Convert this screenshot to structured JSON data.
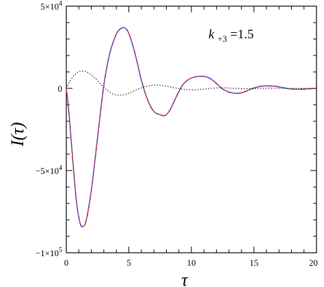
{
  "chart_data": {
    "type": "line",
    "title": "",
    "xlabel": "τ",
    "ylabel": "I(τ)",
    "xlim": [
      0,
      20
    ],
    "ylim": [
      -100000,
      50000
    ],
    "grid": false,
    "x_ticks": [
      {
        "value": 0,
        "label": "0"
      },
      {
        "value": 5,
        "label": "5"
      },
      {
        "value": 10,
        "label": "10"
      },
      {
        "value": 15,
        "label": "15"
      },
      {
        "value": 20,
        "label": "20"
      }
    ],
    "y_ticks": [
      {
        "value": 50000,
        "mantissa": "5×10",
        "exp": "4"
      },
      {
        "value": 0,
        "mantissa": "0",
        "exp": ""
      },
      {
        "value": -50000,
        "mantissa": "−5×10",
        "exp": "4"
      },
      {
        "value": -100000,
        "mantissa": "−1×10",
        "exp": "5"
      }
    ],
    "annotation": {
      "main": "k",
      "sub": "+3",
      "rest": "=1.5"
    },
    "series": [
      {
        "style": "solid",
        "color": "#1f3fd6",
        "x": [
          0,
          0.2,
          0.5,
          0.8,
          1.1,
          1.35,
          1.6,
          2.0,
          2.5,
          3.0,
          3.5,
          4.0,
          4.3,
          4.6,
          4.9,
          5.2,
          5.6,
          6.0,
          6.5,
          7.0,
          7.5,
          7.9,
          8.3,
          8.8,
          9.3,
          9.8,
          10.3,
          10.7,
          11.1,
          11.5,
          12.0,
          12.5,
          13.0,
          13.5,
          14.0,
          14.5,
          15.0,
          15.5,
          16.0,
          16.5,
          17.0,
          17.4,
          17.8,
          18.3,
          18.8,
          19.3,
          19.7,
          20.0
        ],
        "y": [
          0,
          -14000,
          -42000,
          -68000,
          -82000,
          -84000,
          -80000,
          -62000,
          -30000,
          2000,
          22000,
          33000,
          36000,
          37000,
          35000,
          29000,
          18000,
          5000,
          -7000,
          -14000,
          -16000,
          -16500,
          -13000,
          -5000,
          2000,
          5500,
          7000,
          7300,
          7200,
          6000,
          3000,
          -400,
          -2300,
          -3000,
          -2700,
          -1300,
          200,
          1200,
          1500,
          1400,
          900,
          300,
          -200,
          -500,
          -500,
          -300,
          -100,
          0
        ]
      },
      {
        "style": "dashed",
        "color": "#e03c3c",
        "x": [
          0,
          0.2,
          0.5,
          0.8,
          1.1,
          1.35,
          1.6,
          2.0,
          2.5,
          3.0,
          3.5,
          4.0,
          4.3,
          4.6,
          4.9,
          5.2,
          5.6,
          6.0,
          6.5,
          7.0,
          7.5,
          7.9,
          8.3,
          8.8,
          9.3,
          9.8,
          10.3,
          10.7,
          11.1,
          11.5,
          12.0,
          12.5,
          13.0,
          13.5,
          14.0,
          14.5,
          15.0,
          15.5,
          16.0,
          16.5,
          17.0,
          17.4,
          17.8,
          18.3,
          18.8,
          19.3,
          19.7,
          20.0
        ],
        "y": [
          0,
          -14000,
          -42000,
          -68000,
          -82000,
          -84000,
          -80000,
          -62000,
          -30000,
          2000,
          22000,
          33000,
          36000,
          37000,
          35000,
          29000,
          18000,
          5000,
          -7000,
          -14000,
          -16000,
          -16500,
          -13000,
          -5000,
          2000,
          5500,
          7000,
          7300,
          7200,
          6000,
          3000,
          -400,
          -2300,
          -3000,
          -2700,
          -1300,
          200,
          1200,
          1500,
          1400,
          900,
          300,
          -200,
          -500,
          -500,
          -300,
          -100,
          0
        ]
      },
      {
        "style": "dotted",
        "color": "#000000",
        "x": [
          0,
          0.3,
          0.7,
          1.0,
          1.4,
          1.8,
          2.3,
          2.8,
          3.3,
          3.8,
          4.3,
          4.8,
          5.3,
          5.8,
          6.3,
          6.8,
          7.3,
          7.8,
          8.3,
          8.8,
          9.3,
          9.8,
          10.3,
          10.8,
          11.3,
          11.8,
          12.3,
          12.8,
          13.5,
          14.5,
          15.5,
          16.5,
          17.5,
          18.5,
          19.5,
          20.0
        ],
        "y": [
          0,
          4500,
          8500,
          10200,
          10500,
          9300,
          6200,
          2200,
          -1300,
          -3600,
          -4200,
          -3500,
          -1900,
          -300,
          1000,
          1800,
          2000,
          1600,
          900,
          100,
          -500,
          -900,
          -900,
          -600,
          -200,
          150,
          350,
          300,
          0,
          -200,
          0,
          100,
          0,
          -50,
          0,
          0
        ]
      }
    ]
  }
}
